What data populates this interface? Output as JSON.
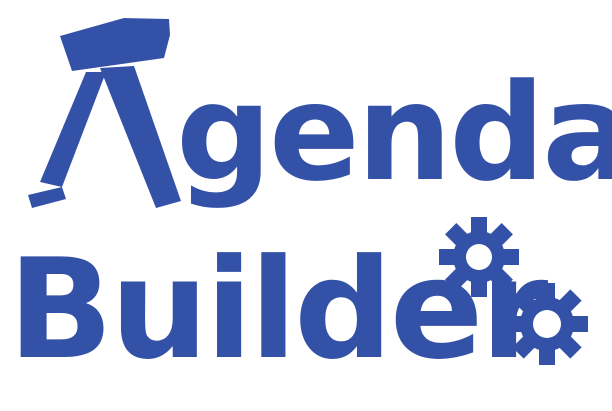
{
  "logo": {
    "title_top_visible": "genda",
    "title_bottom": "Builder",
    "initial_as_hammer": "A",
    "brand_color": "#3451a8",
    "background_color": "#ffffff",
    "icons": [
      "hammer-icon",
      "gear-icon",
      "gear-icon"
    ]
  }
}
